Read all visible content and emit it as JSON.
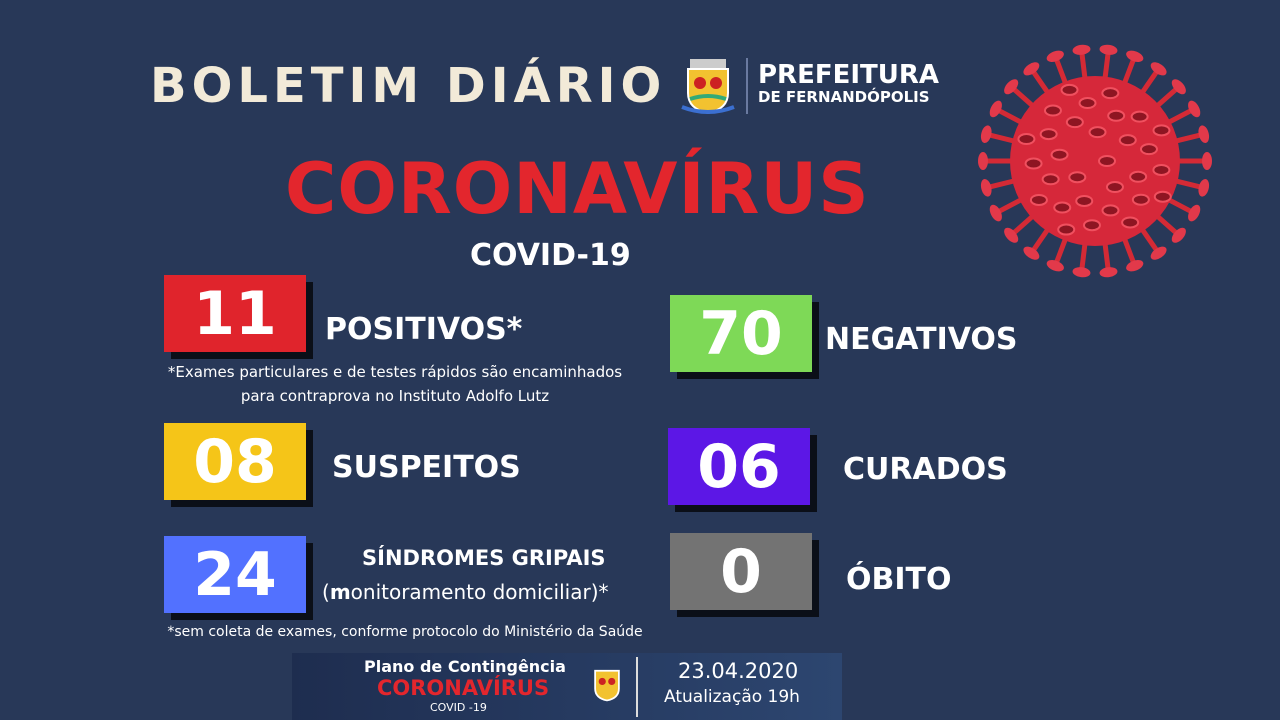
{
  "header": {
    "title": "BOLETIM DIÁRIO",
    "org_line1": "PREFEITURA",
    "org_line2": "DE FERNANDÓPOLIS",
    "main_title": "CORONAVÍRUS",
    "subtitle": "COVID-19"
  },
  "stats": {
    "positivos": {
      "value": "11",
      "label": "POSITIVOS*",
      "color": "#e0242c",
      "note": "*Exames particulares e de testes rápidos são encaminhados",
      "note2": "para contraprova no Instituto Adolfo Lutz"
    },
    "negativos": {
      "value": "70",
      "label": "NEGATIVOS",
      "color": "#7ed957"
    },
    "suspeitos": {
      "value": "08",
      "label": "SUSPEITOS",
      "color": "#f5c518"
    },
    "curados": {
      "value": "06",
      "label": "CURADOS",
      "color": "#5c17e6"
    },
    "sindromes": {
      "value": "24",
      "label": "SÍNDROMES GRIPAIS",
      "label2_bold": "m",
      "label2": "onitoramento domiciliar)*",
      "label2_open": "(",
      "color": "#5271ff",
      "note": "*sem coleta de exames, conforme protocolo do Ministério da Saúde"
    },
    "obito": {
      "value": "0",
      "label": "ÓBITO",
      "color": "#737373"
    }
  },
  "footer": {
    "line1": "Plano de Contingência",
    "line2": "CORONAVÍRUS",
    "line3": "COVID -19",
    "date": "23.04.2020",
    "update": "Atualização 19h"
  },
  "icons": {
    "virus": "coronavirus-illustration",
    "crest": "city-crest"
  }
}
